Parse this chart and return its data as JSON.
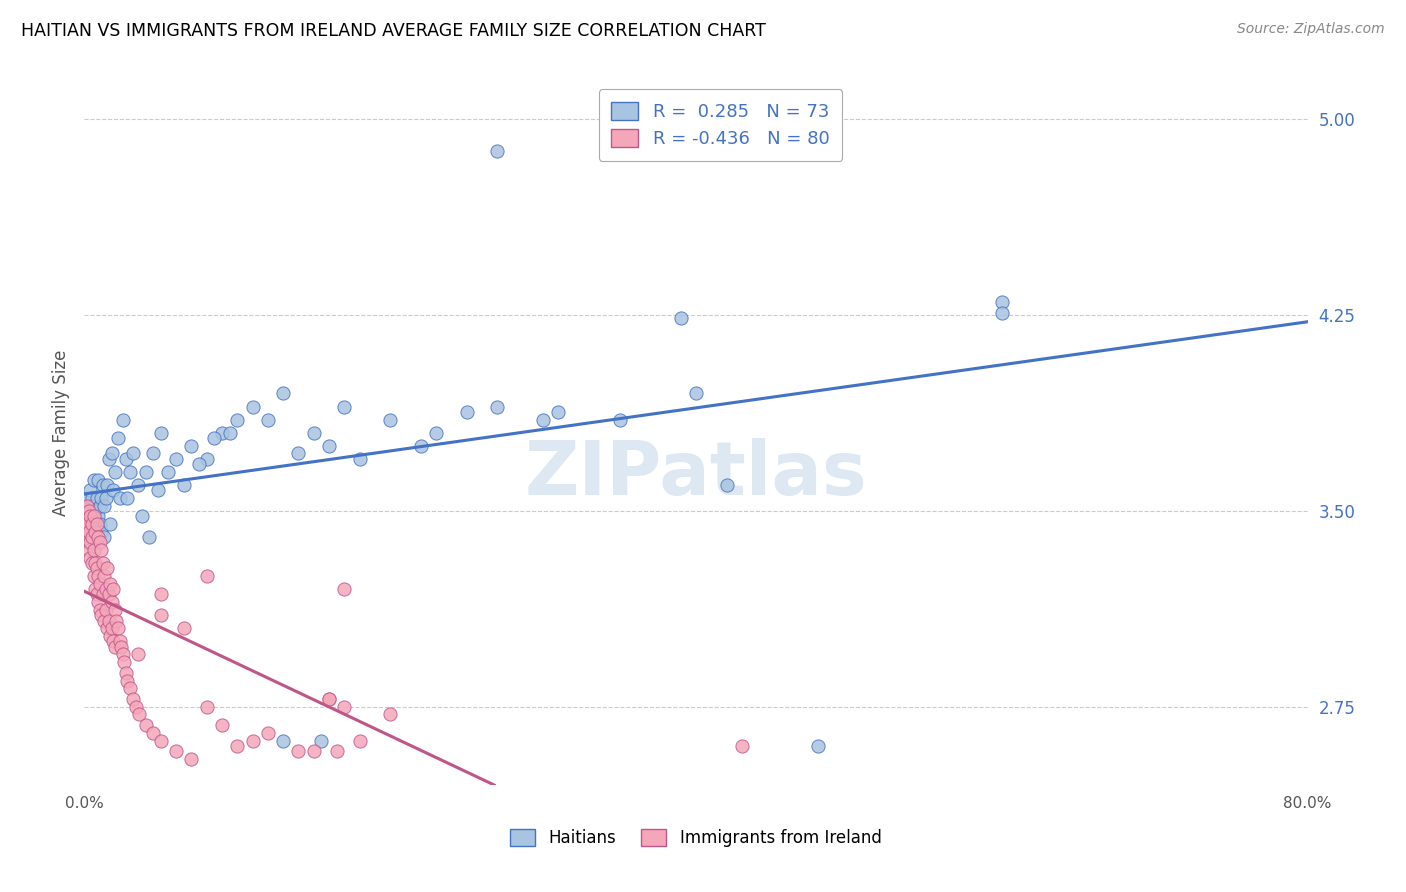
{
  "title": "HAITIAN VS IMMIGRANTS FROM IRELAND AVERAGE FAMILY SIZE CORRELATION CHART",
  "source": "Source: ZipAtlas.com",
  "ylabel": "Average Family Size",
  "right_yticks": [
    2.75,
    3.5,
    4.25,
    5.0
  ],
  "xlim": [
    0.0,
    0.8
  ],
  "ylim": [
    2.45,
    5.15
  ],
  "blue_R": 0.285,
  "blue_N": 73,
  "pink_R": -0.436,
  "pink_N": 80,
  "blue_color": "#a8c4e0",
  "pink_color": "#f4a7b9",
  "blue_line_color": "#4472C4",
  "pink_line_color": "#c0558a",
  "legend_label_blue": "Haitians",
  "legend_label_pink": "Immigrants from Ireland",
  "watermark": "ZIPatlas",
  "blue_scatter_x": [
    0.001,
    0.002,
    0.002,
    0.003,
    0.003,
    0.004,
    0.004,
    0.005,
    0.005,
    0.006,
    0.006,
    0.007,
    0.007,
    0.008,
    0.008,
    0.009,
    0.009,
    0.01,
    0.01,
    0.011,
    0.011,
    0.012,
    0.013,
    0.013,
    0.014,
    0.015,
    0.016,
    0.017,
    0.018,
    0.019,
    0.02,
    0.022,
    0.023,
    0.025,
    0.027,
    0.028,
    0.03,
    0.032,
    0.035,
    0.038,
    0.04,
    0.042,
    0.045,
    0.048,
    0.05,
    0.055,
    0.06,
    0.065,
    0.07,
    0.08,
    0.09,
    0.1,
    0.11,
    0.12,
    0.13,
    0.15,
    0.17,
    0.2,
    0.23,
    0.27,
    0.31,
    0.35,
    0.4,
    0.18,
    0.25,
    0.3,
    0.22,
    0.16,
    0.14,
    0.075,
    0.085,
    0.095,
    0.6
  ],
  "blue_scatter_y": [
    3.5,
    3.45,
    3.55,
    3.52,
    3.48,
    3.58,
    3.42,
    3.55,
    3.38,
    3.52,
    3.62,
    3.45,
    3.5,
    3.55,
    3.4,
    3.48,
    3.62,
    3.45,
    3.52,
    3.42,
    3.55,
    3.6,
    3.52,
    3.4,
    3.55,
    3.6,
    3.7,
    3.45,
    3.72,
    3.58,
    3.65,
    3.78,
    3.55,
    3.85,
    3.7,
    3.55,
    3.65,
    3.72,
    3.6,
    3.48,
    3.65,
    3.4,
    3.72,
    3.58,
    3.8,
    3.65,
    3.7,
    3.6,
    3.75,
    3.7,
    3.8,
    3.85,
    3.9,
    3.85,
    3.95,
    3.8,
    3.9,
    3.85,
    3.8,
    3.9,
    3.88,
    3.85,
    3.95,
    3.7,
    3.88,
    3.85,
    3.75,
    3.75,
    3.72,
    3.68,
    3.78,
    3.8,
    4.3
  ],
  "blue_outliers_x": [
    0.27,
    0.6,
    0.39,
    0.155,
    0.13,
    0.42,
    0.48
  ],
  "blue_outliers_y": [
    4.88,
    4.26,
    4.24,
    2.62,
    2.62,
    3.6,
    2.6
  ],
  "pink_scatter_x": [
    0.001,
    0.001,
    0.002,
    0.002,
    0.002,
    0.003,
    0.003,
    0.003,
    0.004,
    0.004,
    0.004,
    0.005,
    0.005,
    0.005,
    0.006,
    0.006,
    0.006,
    0.007,
    0.007,
    0.007,
    0.008,
    0.008,
    0.008,
    0.009,
    0.009,
    0.009,
    0.01,
    0.01,
    0.01,
    0.011,
    0.011,
    0.012,
    0.012,
    0.013,
    0.013,
    0.014,
    0.014,
    0.015,
    0.015,
    0.016,
    0.016,
    0.017,
    0.017,
    0.018,
    0.018,
    0.019,
    0.019,
    0.02,
    0.02,
    0.021,
    0.022,
    0.023,
    0.024,
    0.025,
    0.026,
    0.027,
    0.028,
    0.03,
    0.032,
    0.034,
    0.036,
    0.04,
    0.045,
    0.05,
    0.06,
    0.07,
    0.08,
    0.1,
    0.12,
    0.15,
    0.18,
    0.2,
    0.05,
    0.065,
    0.035,
    0.09,
    0.11,
    0.14,
    0.16,
    0.17
  ],
  "pink_scatter_y": [
    3.48,
    3.42,
    3.52,
    3.38,
    3.45,
    3.5,
    3.35,
    3.42,
    3.48,
    3.32,
    3.38,
    3.45,
    3.3,
    3.4,
    3.48,
    3.25,
    3.35,
    3.42,
    3.2,
    3.3,
    3.45,
    3.18,
    3.28,
    3.4,
    3.15,
    3.25,
    3.38,
    3.12,
    3.22,
    3.35,
    3.1,
    3.3,
    3.18,
    3.25,
    3.08,
    3.2,
    3.12,
    3.28,
    3.05,
    3.18,
    3.08,
    3.22,
    3.02,
    3.15,
    3.05,
    3.2,
    3.0,
    3.12,
    2.98,
    3.08,
    3.05,
    3.0,
    2.98,
    2.95,
    2.92,
    2.88,
    2.85,
    2.82,
    2.78,
    2.75,
    2.72,
    2.68,
    2.65,
    2.62,
    2.58,
    2.55,
    2.75,
    2.6,
    2.65,
    2.58,
    2.62,
    2.72,
    3.1,
    3.05,
    2.95,
    2.68,
    2.62,
    2.58,
    2.78,
    2.75
  ],
  "pink_extra_x": [
    0.08,
    0.17,
    0.43,
    0.16,
    0.05,
    0.165
  ],
  "pink_extra_y": [
    3.25,
    3.2,
    2.6,
    2.78,
    3.18,
    2.58
  ]
}
